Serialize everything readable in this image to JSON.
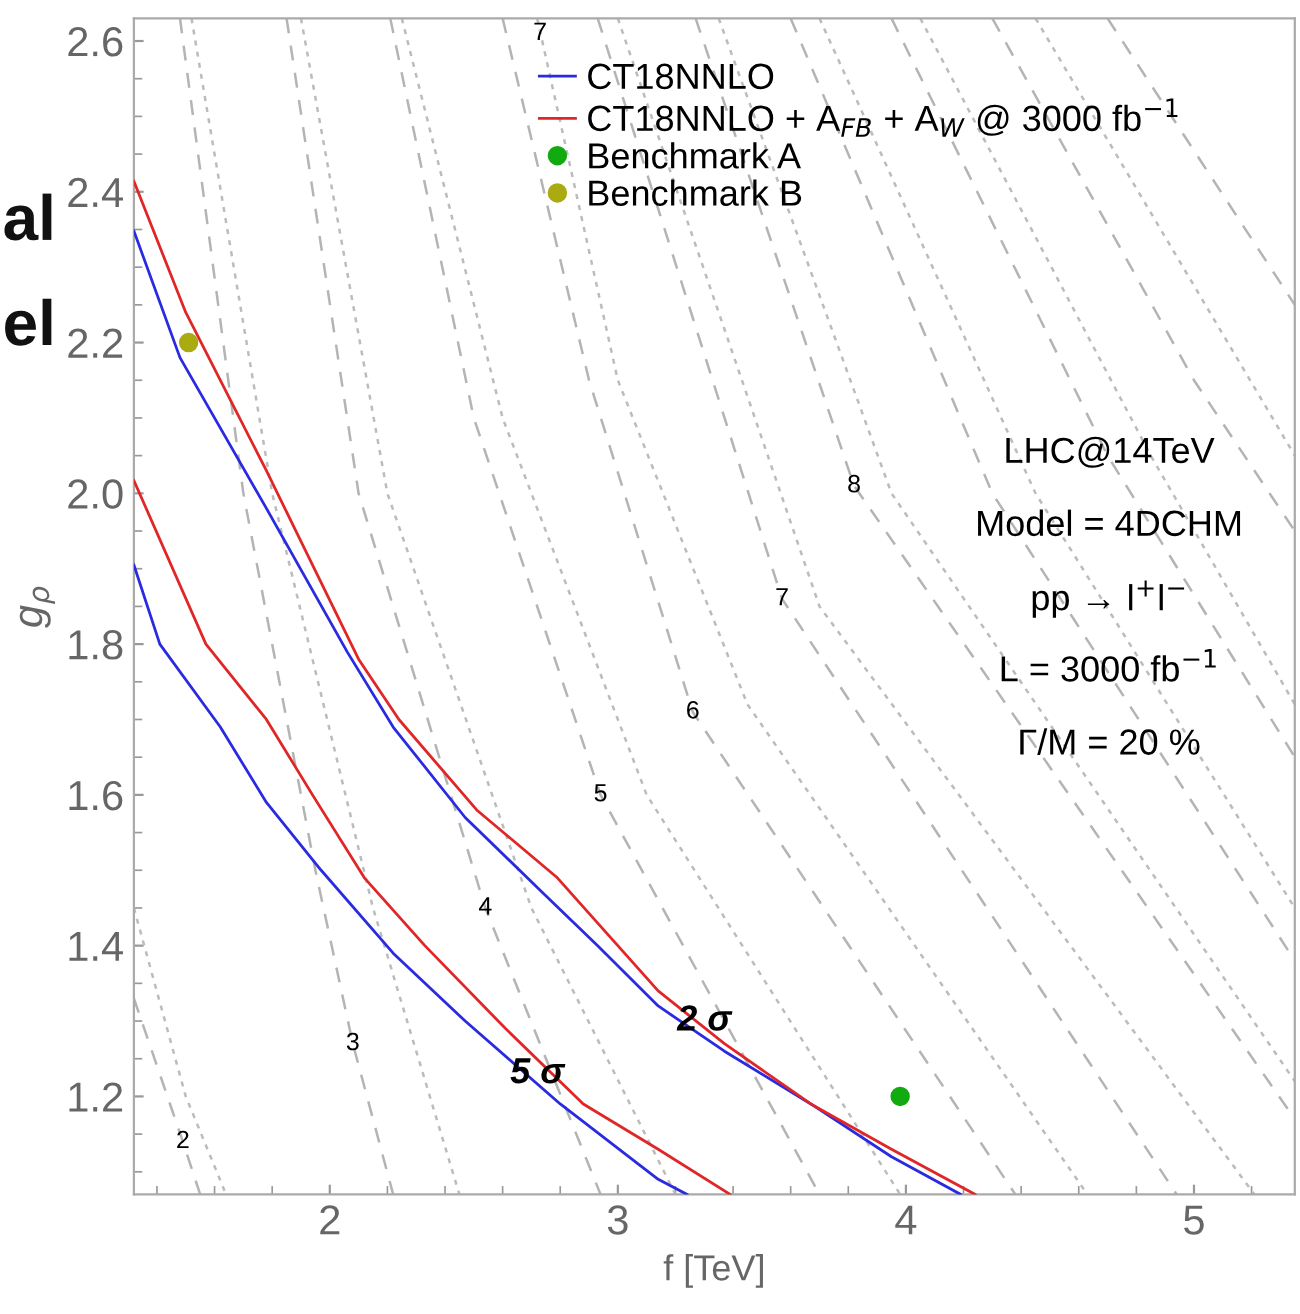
{
  "chart_data": {
    "type": "line",
    "xlabel": "f [TeV]",
    "ylabel": "g$_{ρ}$",
    "xlim": [
      1.32,
      5.35
    ],
    "ylim": [
      1.07,
      2.63
    ],
    "xticks": [
      2,
      3,
      4,
      5
    ],
    "yticks": [
      1.2,
      1.4,
      1.6,
      1.8,
      {
        "value": 2,
        "label": "2.0"
      },
      2.2,
      2.4,
      2.6
    ],
    "grid": false,
    "legend": "top right",
    "marker": "none",
    "series": [
      {
        "name": "CT18NNLO",
        "color": "#2a2ae0",
        "x": [
          1.32,
          1.41,
          1.62,
          1.78,
          1.97,
          2.22,
          2.47,
          2.8,
          3.14,
          3.24
        ],
        "values": [
          1.905,
          1.8,
          1.69,
          1.59,
          1.5,
          1.39,
          1.3,
          1.19,
          1.09,
          1.07
        ]
      },
      {
        "name": "CT18NNLO + A$_{FB}$ + A$_{W}$ @ 3000 fb$^{−1}$",
        "color": "#e02626",
        "x": [
          1.32,
          1.57,
          1.78,
          1.94,
          2.12,
          2.33,
          2.61,
          2.88,
          3.14,
          3.39
        ],
        "values": [
          2.017,
          1.8,
          1.7,
          1.6,
          1.49,
          1.4,
          1.29,
          1.19,
          1.13,
          1.07
        ]
      },
      {
        "color": "#2a2ae0",
        "x": [
          1.32,
          1.48,
          1.78,
          2.06,
          2.22,
          2.47,
          2.74,
          2.93,
          3.14,
          3.37,
          3.67,
          3.95,
          4.19
        ],
        "values": [
          2.348,
          2.18,
          1.98,
          1.79,
          1.69,
          1.57,
          1.47,
          1.4,
          1.32,
          1.26,
          1.19,
          1.12,
          1.07
        ]
      },
      {
        "color": "#e02626",
        "x": [
          1.32,
          1.5,
          1.78,
          2.1,
          2.24,
          2.51,
          2.79,
          3.14,
          3.37,
          3.67,
          3.95,
          4.24
        ],
        "values": [
          2.414,
          2.24,
          2.03,
          1.78,
          1.7,
          1.58,
          1.49,
          1.34,
          1.27,
          1.19,
          1.13,
          1.07
        ]
      },
      {
        "name": "Benchmark A",
        "type": "scatter",
        "marker": "circle",
        "color": "#11aa11",
        "x": [
          3.98
        ],
        "values": [
          1.2
        ]
      },
      {
        "name": "Benchmark B",
        "type": "scatter",
        "marker": "circle",
        "color": "#aaaa11",
        "x": [
          1.51
        ],
        "values": [
          2.2
        ]
      },
      {
        "color": "#b4b4b4",
        "line_style": "dashed",
        "x": [
          1.32,
          1.49,
          1.55
        ],
        "values": [
          1.33,
          1.14,
          1.07
        ]
      },
      {
        "color": "#b4b4b4",
        "line_style": "dashed",
        "x": [
          1.48,
          1.7,
          1.95,
          2.08,
          2.22
        ],
        "values": [
          2.63,
          2.0,
          1.5,
          1.27,
          1.07
        ]
      },
      {
        "color": "#b4b4b4",
        "line_style": "dashed",
        "x": [
          1.85,
          2.1,
          2.54,
          2.94
        ],
        "values": [
          2.63,
          2.0,
          1.45,
          1.07
        ]
      },
      {
        "color": "#b4b4b4",
        "line_style": "dashed",
        "x": [
          2.21,
          2.5,
          2.94,
          3.7
        ],
        "values": [
          2.63,
          2.1,
          1.6,
          1.07
        ]
      },
      {
        "color": "#b4b4b4",
        "line_style": "dashed",
        "x": [
          2.6,
          2.9,
          3.26,
          4.38
        ],
        "values": [
          2.63,
          2.15,
          1.71,
          1.07
        ]
      },
      {
        "color": "#b4b4b4",
        "line_style": "dashed",
        "x": [
          2.93,
          3.57,
          4.94
        ],
        "values": [
          2.63,
          1.86,
          1.07
        ]
      },
      {
        "color": "#b4b4b4",
        "line_style": "dashed",
        "x": [
          3.27,
          3.82,
          5.35
        ],
        "values": [
          2.63,
          2.01,
          1.17
        ]
      },
      {
        "color": "#b4b4b4",
        "line_style": "dashed",
        "x": [
          3.6,
          4.3,
          5.35
        ],
        "values": [
          2.63,
          2.0,
          1.38
        ]
      },
      {
        "color": "#b4b4b4",
        "line_style": "dashed",
        "x": [
          3.95,
          4.7,
          5.35
        ],
        "values": [
          2.63,
          2.05,
          1.65
        ]
      },
      {
        "color": "#b4b4b4",
        "line_style": "dashed",
        "x": [
          4.3,
          5.0,
          5.35
        ],
        "values": [
          2.63,
          2.15,
          1.95
        ]
      },
      {
        "color": "#b4b4b4",
        "line_style": "dashed",
        "x": [
          4.7,
          5.35
        ],
        "values": [
          2.63,
          2.25
        ]
      },
      {
        "color": "#bcbcbc",
        "line_style": "dotted",
        "x": [
          1.32,
          1.5,
          1.64
        ],
        "values": [
          1.45,
          1.2,
          1.07
        ]
      },
      {
        "color": "#bcbcbc",
        "line_style": "dotted",
        "x": [
          1.52,
          1.8,
          2.15,
          2.45
        ],
        "values": [
          2.63,
          2.0,
          1.45,
          1.07
        ]
      },
      {
        "color": "#bcbcbc",
        "line_style": "dotted",
        "x": [
          1.9,
          2.2,
          2.7,
          3.2
        ],
        "values": [
          2.63,
          2.0,
          1.45,
          1.07
        ]
      },
      {
        "color": "#bcbcbc",
        "line_style": "dotted",
        "x": [
          2.25,
          2.6,
          3.1,
          3.98
        ],
        "values": [
          2.63,
          2.1,
          1.6,
          1.07
        ]
      },
      {
        "color": "#bcbcbc",
        "line_style": "dotted",
        "x": [
          2.72,
          3.0,
          3.45,
          4.63
        ],
        "values": [
          2.63,
          2.15,
          1.72,
          1.07
        ]
      },
      {
        "color": "#bcbcbc",
        "line_style": "dotted",
        "x": [
          3.0,
          3.7,
          5.21
        ],
        "values": [
          2.63,
          1.85,
          1.07
        ]
      },
      {
        "color": "#bcbcbc",
        "line_style": "dotted",
        "x": [
          3.35,
          3.95,
          5.35
        ],
        "values": [
          2.63,
          2.0,
          1.22
        ]
      },
      {
        "color": "#bcbcbc",
        "line_style": "dotted",
        "x": [
          3.7,
          4.45,
          5.35
        ],
        "values": [
          2.63,
          2.0,
          1.45
        ]
      },
      {
        "color": "#bcbcbc",
        "line_style": "dotted",
        "x": [
          4.05,
          4.85,
          5.35
        ],
        "values": [
          2.63,
          2.05,
          1.72
        ]
      },
      {
        "color": "#bcbcbc",
        "line_style": "dotted",
        "x": [
          4.45,
          5.35
        ],
        "values": [
          2.63,
          2.05
        ]
      }
    ],
    "annotations": [
      {
        "text": "5 σ",
        "x": 2.72,
        "y": 1.23
      },
      {
        "text": "2 σ",
        "x": 3.3,
        "y": 1.3
      },
      {
        "text": "2",
        "x": 1.49,
        "y": 1.14
      },
      {
        "text": "3",
        "x": 2.08,
        "y": 1.27
      },
      {
        "text": "4",
        "x": 2.54,
        "y": 1.45
      },
      {
        "text": "5",
        "x": 2.94,
        "y": 1.6
      },
      {
        "text": "6",
        "x": 3.26,
        "y": 1.71
      },
      {
        "text": "7",
        "x": 3.57,
        "y": 1.86
      },
      {
        "text": "8",
        "x": 3.82,
        "y": 2.01
      },
      {
        "text": "7",
        "x": 2.73,
        "y": 2.61
      },
      "LHC@14TeV",
      "Model = 4DCHM",
      "pp → l$^{+}$l$^{−}$",
      "L = 3000 fb$^{−1}$",
      "Γ/M = 20 %",
      "al",
      "el"
    ]
  }
}
